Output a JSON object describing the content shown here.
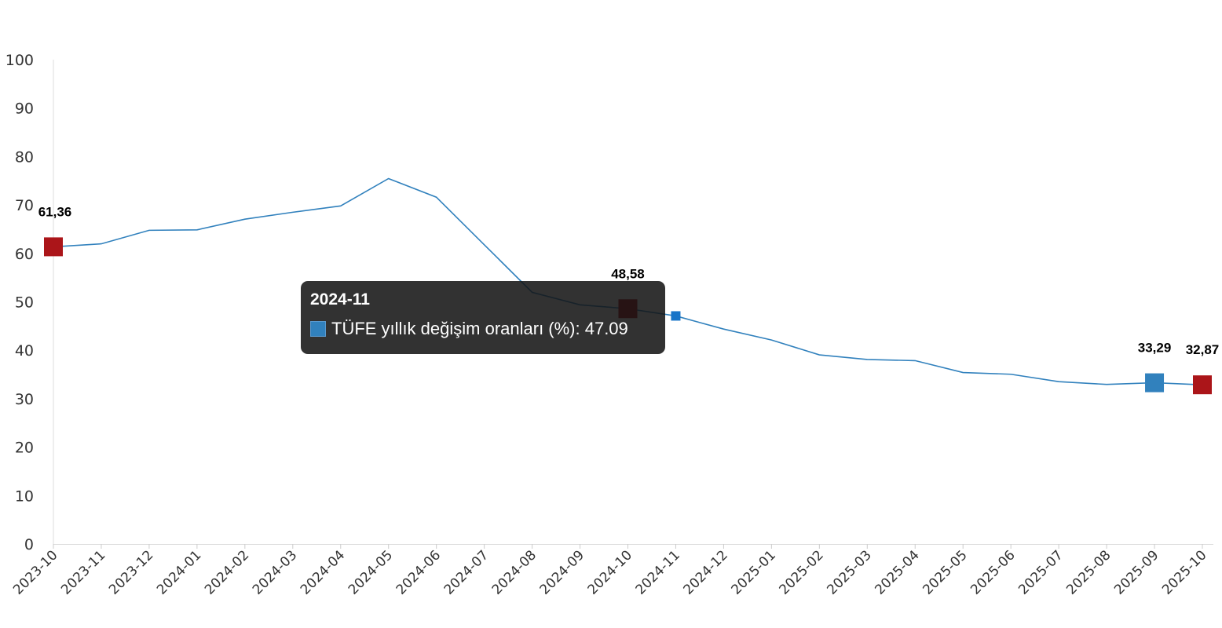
{
  "chart_data": {
    "type": "line",
    "title": "",
    "xlabel": "",
    "ylabel": "",
    "ylim": [
      0,
      100
    ],
    "yticks": [
      0,
      10,
      20,
      30,
      40,
      50,
      60,
      70,
      80,
      90,
      100
    ],
    "grid": false,
    "categories": [
      "2023-10",
      "2023-11",
      "2023-12",
      "2024-01",
      "2024-02",
      "2024-03",
      "2024-04",
      "2024-05",
      "2024-06",
      "2024-07",
      "2024-08",
      "2024-09",
      "2024-10",
      "2024-11",
      "2024-12",
      "2025-01",
      "2025-02",
      "2025-03",
      "2025-04",
      "2025-05",
      "2025-06",
      "2025-07",
      "2025-08",
      "2025-09",
      "2025-10"
    ],
    "series": [
      {
        "name": "TÜFE yıllık değişim oranları (%)",
        "color": "#3181bd",
        "values": [
          61.36,
          61.98,
          64.77,
          64.86,
          67.07,
          68.5,
          69.8,
          75.45,
          71.6,
          61.78,
          51.97,
          49.38,
          48.58,
          47.09,
          44.38,
          42.12,
          39.05,
          38.1,
          37.86,
          35.41,
          35.05,
          33.52,
          32.95,
          33.29,
          32.87
        ]
      }
    ],
    "highlighted_points": [
      {
        "category": "2023-10",
        "label": "61,36",
        "color": "#ab1519"
      },
      {
        "category": "2024-10",
        "label": "48,58",
        "color": "#ab1519"
      },
      {
        "category": "2025-09",
        "label": "33,29",
        "color": "#3181bd"
      },
      {
        "category": "2025-10",
        "label": "32,87",
        "color": "#ab1519"
      }
    ],
    "hover_category": "2024-11"
  },
  "tooltip": {
    "title": "2024-11",
    "text": "TÜFE yıllık değişim oranları (%): 47.09"
  }
}
